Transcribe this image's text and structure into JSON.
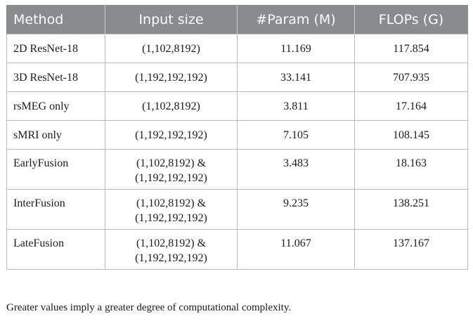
{
  "table": {
    "headers": [
      "Method",
      "Input size",
      "#Param (M)",
      "FLOPs (G)"
    ],
    "rows": [
      {
        "method": "2D ResNet-18",
        "input_line1": "(1,102,8192)",
        "input_line2": "",
        "params": "11.169",
        "flops": "117.854"
      },
      {
        "method": "3D ResNet-18",
        "input_line1": "(1,192,192,192)",
        "input_line2": "",
        "params": "33.141",
        "flops": "707.935"
      },
      {
        "method": "rsMEG only",
        "input_line1": "(1,102,8192)",
        "input_line2": "",
        "params": "3.811",
        "flops": "17.164"
      },
      {
        "method": "sMRI only",
        "input_line1": "(1,192,192,192)",
        "input_line2": "",
        "params": "7.105",
        "flops": "108.145"
      },
      {
        "method": "EarlyFusion",
        "input_line1": "(1,102,8192) &",
        "input_line2": "(1,192,192,192)",
        "params": "3.483",
        "flops": "18.163"
      },
      {
        "method": "InterFusion",
        "input_line1": "(1,102,8192) &",
        "input_line2": "(1,192,192,192)",
        "params": "9.235",
        "flops": "138.251"
      },
      {
        "method": "LateFusion",
        "input_line1": "(1,102,8192) &",
        "input_line2": "(1,192,192,192)",
        "params": "11.067",
        "flops": "137.167"
      }
    ]
  },
  "footnote": "Greater values imply a greater degree of computational complexity."
}
